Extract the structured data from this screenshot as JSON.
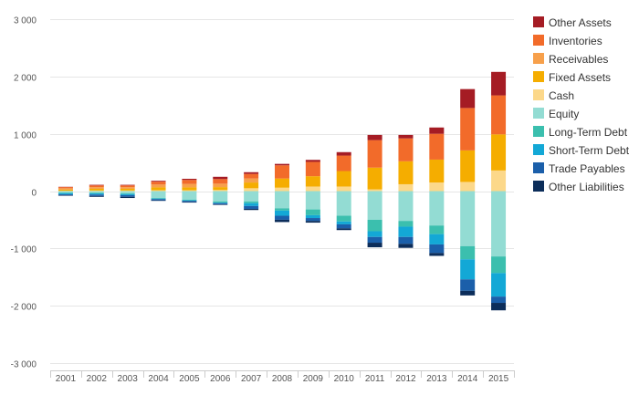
{
  "chart_data": {
    "type": "bar",
    "stacked": true,
    "categories": [
      "2001",
      "2002",
      "2003",
      "2004",
      "2005",
      "2006",
      "2007",
      "2008",
      "2009",
      "2010",
      "2011",
      "2012",
      "2013",
      "2014",
      "2015"
    ],
    "ylim": [
      -3000,
      3000
    ],
    "yticks": [
      3000,
      2000,
      1000,
      0,
      -1000,
      -2000,
      -3000
    ],
    "ytick_labels": [
      "3 000",
      "2 000",
      "1 000",
      "0",
      "-1 000",
      "-2 000",
      "-3 000"
    ],
    "grid": true,
    "legend_position": "right",
    "series": [
      {
        "name": "Other Assets",
        "color": "#a51c24",
        "side": "asset",
        "values": [
          5,
          10,
          10,
          15,
          20,
          40,
          30,
          25,
          35,
          60,
          90,
          60,
          110,
          330,
          410
        ]
      },
      {
        "name": "Inventories",
        "color": "#f26b2a",
        "side": "asset",
        "values": [
          20,
          30,
          30,
          50,
          70,
          80,
          80,
          230,
          250,
          270,
          480,
          400,
          450,
          740,
          680
        ]
      },
      {
        "name": "Receivables",
        "color": "#f7a04b",
        "side": "asset",
        "values": [
          25,
          30,
          30,
          50,
          60,
          60,
          70,
          0,
          0,
          0,
          0,
          0,
          0,
          0,
          0
        ]
      },
      {
        "name": "Fixed Assets",
        "color": "#f5ad00",
        "side": "asset",
        "values": [
          20,
          30,
          30,
          50,
          50,
          50,
          100,
          160,
          180,
          270,
          380,
          400,
          400,
          550,
          630
        ]
      },
      {
        "name": "Cash",
        "color": "#fcd88a",
        "side": "asset",
        "values": [
          5,
          10,
          10,
          15,
          15,
          20,
          50,
          60,
          80,
          80,
          30,
          120,
          150,
          160,
          360
        ]
      },
      {
        "name": "Equity",
        "color": "#93dcd3",
        "side": "liability",
        "values": [
          25,
          30,
          40,
          120,
          150,
          180,
          180,
          300,
          320,
          430,
          500,
          520,
          600,
          960,
          1140
        ]
      },
      {
        "name": "Long-Term Debt",
        "color": "#3bbfae",
        "side": "liability",
        "values": [
          10,
          10,
          10,
          10,
          10,
          20,
          30,
          40,
          100,
          100,
          200,
          100,
          150,
          230,
          290
        ]
      },
      {
        "name": "Short-Term Debt",
        "color": "#13a8d6",
        "side": "liability",
        "values": [
          20,
          20,
          20,
          10,
          10,
          10,
          50,
          90,
          50,
          50,
          100,
          180,
          180,
          350,
          410
        ]
      },
      {
        "name": "Trade Payables",
        "color": "#1b5faa",
        "side": "liability",
        "values": [
          15,
          25,
          30,
          20,
          20,
          20,
          50,
          70,
          50,
          70,
          100,
          120,
          150,
          200,
          110
        ]
      },
      {
        "name": "Other Liabilities",
        "color": "#0c2d5a",
        "side": "liability",
        "values": [
          10,
          15,
          20,
          10,
          10,
          10,
          20,
          40,
          30,
          30,
          80,
          70,
          50,
          80,
          130
        ]
      }
    ]
  }
}
